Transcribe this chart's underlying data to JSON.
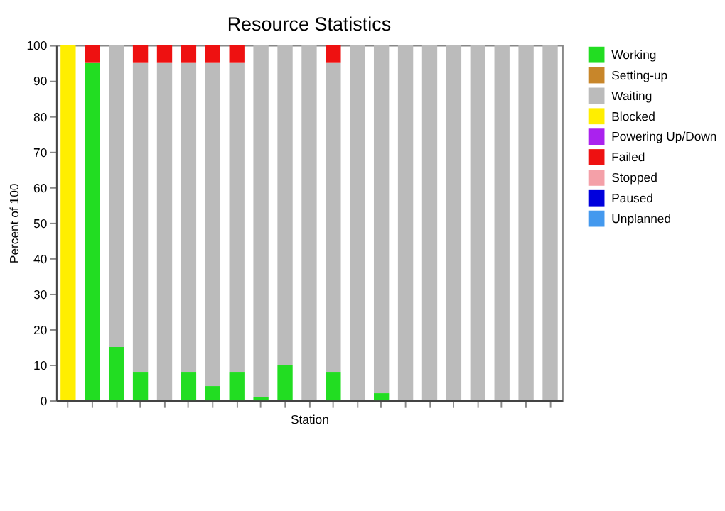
{
  "chart_data": {
    "type": "bar",
    "title": "Resource Statistics",
    "xlabel": "Station",
    "ylabel": "Percent of 100",
    "stacked": true,
    "categories": [
      null,
      null,
      null,
      null,
      null,
      null,
      null,
      null,
      null,
      null,
      null,
      null,
      null,
      null,
      null,
      null,
      null,
      null,
      null,
      null,
      null
    ],
    "series": [
      {
        "name": "Working",
        "color": "#22dd22",
        "values": [
          0,
          95,
          15,
          8,
          0,
          8,
          4,
          8,
          1,
          10,
          0,
          8,
          0,
          2,
          0,
          0,
          0,
          0,
          0,
          0,
          0
        ]
      },
      {
        "name": "Setting-up",
        "color": "#c8862a",
        "values": [
          0,
          0,
          0,
          0,
          0,
          0,
          0,
          0,
          0,
          0,
          0,
          0,
          0,
          0,
          0,
          0,
          0,
          0,
          0,
          0,
          0
        ]
      },
      {
        "name": "Waiting",
        "color": "#bbbbbb",
        "values": [
          0,
          0,
          85,
          87,
          95,
          87,
          91,
          87,
          99,
          90,
          100,
          87,
          100,
          98,
          100,
          100,
          100,
          100,
          100,
          100,
          100
        ]
      },
      {
        "name": "Blocked",
        "color": "#ffee00",
        "values": [
          100,
          0,
          0,
          0,
          0,
          0,
          0,
          0,
          0,
          0,
          0,
          0,
          0,
          0,
          0,
          0,
          0,
          0,
          0,
          0,
          0
        ]
      },
      {
        "name": "Powering Up/Down",
        "color": "#aa22ee",
        "values": [
          0,
          0,
          0,
          0,
          0,
          0,
          0,
          0,
          0,
          0,
          0,
          0,
          0,
          0,
          0,
          0,
          0,
          0,
          0,
          0,
          0
        ]
      },
      {
        "name": "Failed",
        "color": "#ee1111",
        "values": [
          0,
          5,
          0,
          5,
          5,
          5,
          5,
          5,
          0,
          0,
          0,
          5,
          0,
          0,
          0,
          0,
          0,
          0,
          0,
          0,
          0
        ]
      },
      {
        "name": "Stopped",
        "color": "#f4a0a8",
        "values": [
          0,
          0,
          0,
          0,
          0,
          0,
          0,
          0,
          0,
          0,
          0,
          0,
          0,
          0,
          0,
          0,
          0,
          0,
          0,
          0,
          0
        ]
      },
      {
        "name": "Paused",
        "color": "#0000dd",
        "values": [
          0,
          0,
          0,
          0,
          0,
          0,
          0,
          0,
          0,
          0,
          0,
          0,
          0,
          0,
          0,
          0,
          0,
          0,
          0,
          0,
          0
        ]
      },
      {
        "name": "Unplanned",
        "color": "#4499ee",
        "values": [
          0,
          0,
          0,
          0,
          0,
          0,
          0,
          0,
          0,
          0,
          0,
          0,
          0,
          0,
          0,
          0,
          0,
          0,
          0,
          0,
          0
        ]
      }
    ],
    "ylim": [
      0,
      100
    ],
    "yticks": [
      0,
      10,
      20,
      30,
      40,
      50,
      60,
      70,
      80,
      90,
      100
    ],
    "grid": false,
    "legend": "top right",
    "tick_labels": "y"
  }
}
